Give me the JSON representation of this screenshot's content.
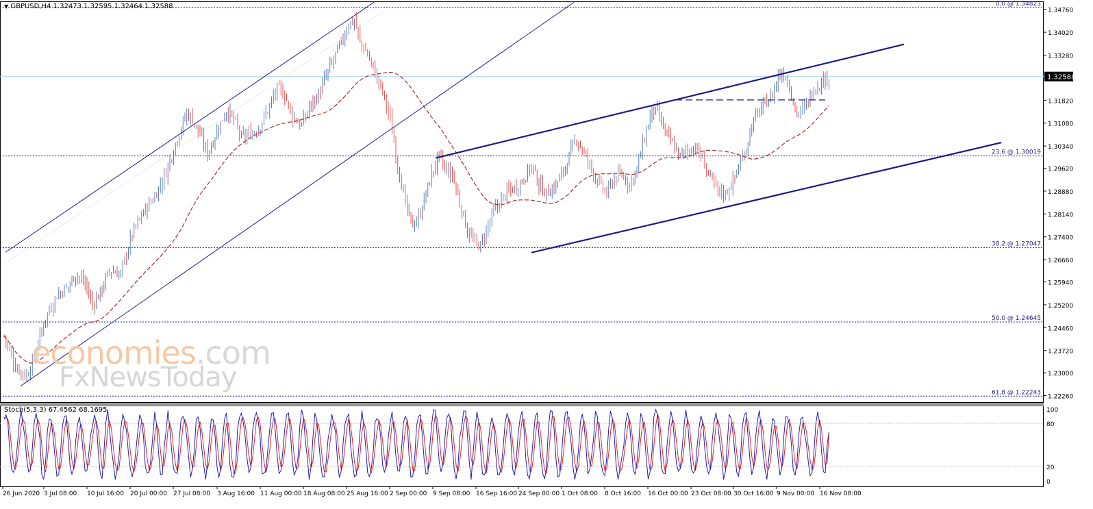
{
  "chart_title": "GBPUSD,H4  1.32473 1.32595 1.32464 1.32588",
  "indicator_title": "Stoch(5,3,3) 67.4562 68.1695",
  "watermark": {
    "part1": "economies",
    "part2": ".com",
    "line2": "FxNewsToday"
  },
  "current_price_label": "1.32588",
  "colors": {
    "bull": "#5b7fb8",
    "bear": "#e65050",
    "ma": "#a52a2a",
    "channel": "#1c1c8c",
    "fib": "#23238c",
    "price_line": "#a6d7ef",
    "stoch_main": "#1f1fb0",
    "stoch_signal": "#e02020"
  },
  "chart_data": {
    "type": "candlestick",
    "symbol": "GBPUSD",
    "timeframe": "H4",
    "ohlc_current": [
      1.32473,
      1.32595,
      1.32464,
      1.32588
    ],
    "ylim": [
      1.2205,
      1.3502
    ],
    "y_ticks": [
      "1.34760",
      "1.34020",
      "1.33280",
      "1.32588",
      "1.31820",
      "1.31080",
      "1.30340",
      "1.29620",
      "1.28880",
      "1.28140",
      "1.27400",
      "1.26660",
      "1.25940",
      "1.25200",
      "1.24460",
      "1.23720",
      "1.23000",
      "1.22260"
    ],
    "x_labels": [
      "26 Jun 2020",
      "3 Jul 08:00",
      "10 Jul 16:00",
      "20 Jul 00:00",
      "27 Jul 08:00",
      "3 Aug 16:00",
      "11 Aug 00:00",
      "18 Aug 08:00",
      "25 Aug 16:00",
      "2 Sep 00:00",
      "9 Sep 08:00",
      "16 Sep 16:00",
      "24 Sep 00:00",
      "1 Oct 08:00",
      "8 Oct 16:00",
      "16 Oct 00:00",
      "23 Oct 08:00",
      "30 Oct 16:00",
      "9 Nov 00:00",
      "16 Nov 08:00"
    ],
    "fib_levels": [
      {
        "label": "0.0 @ 1.34823",
        "value": 1.34823
      },
      {
        "label": "23.6 @ 1.30019",
        "value": 1.30019
      },
      {
        "label": "38.2 @ 1.27047",
        "value": 1.27047
      },
      {
        "label": "50.0 @ 1.24645",
        "value": 1.24645
      },
      {
        "label": "61.8 @ 1.22243",
        "value": 1.22243
      }
    ],
    "current_price": 1.32588,
    "close_path": [
      [
        0,
        1.242
      ],
      [
        6,
        1.232
      ],
      [
        12,
        1.229
      ],
      [
        16,
        1.235
      ],
      [
        22,
        1.248
      ],
      [
        28,
        1.255
      ],
      [
        34,
        1.258
      ],
      [
        38,
        1.262
      ],
      [
        43,
        1.259
      ],
      [
        47,
        1.252
      ],
      [
        51,
        1.256
      ],
      [
        56,
        1.263
      ],
      [
        62,
        1.262
      ],
      [
        68,
        1.275
      ],
      [
        74,
        1.282
      ],
      [
        80,
        1.287
      ],
      [
        86,
        1.295
      ],
      [
        92,
        1.306
      ],
      [
        97,
        1.314
      ],
      [
        100,
        1.312
      ],
      [
        104,
        1.307
      ],
      [
        108,
        1.301
      ],
      [
        113,
        1.308
      ],
      [
        118,
        1.315
      ],
      [
        122,
        1.312
      ],
      [
        126,
        1.306
      ],
      [
        130,
        1.307
      ],
      [
        135,
        1.309
      ],
      [
        140,
        1.315
      ],
      [
        145,
        1.322
      ],
      [
        149,
        1.32
      ],
      [
        153,
        1.313
      ],
      [
        158,
        1.31
      ],
      [
        162,
        1.316
      ],
      [
        167,
        1.32
      ],
      [
        171,
        1.326
      ],
      [
        176,
        1.333
      ],
      [
        180,
        1.338
      ],
      [
        183,
        1.343
      ],
      [
        186,
        1.344
      ],
      [
        189,
        1.337
      ],
      [
        193,
        1.333
      ],
      [
        197,
        1.327
      ],
      [
        201,
        1.321
      ],
      [
        205,
        1.312
      ],
      [
        208,
        1.301
      ],
      [
        211,
        1.291
      ],
      [
        214,
        1.282
      ],
      [
        217,
        1.278
      ],
      [
        220,
        1.28
      ],
      [
        224,
        1.288
      ],
      [
        228,
        1.296
      ],
      [
        231,
        1.3
      ],
      [
        234,
        1.296
      ],
      [
        238,
        1.294
      ],
      [
        242,
        1.285
      ],
      [
        246,
        1.276
      ],
      [
        250,
        1.272
      ],
      [
        253,
        1.271
      ],
      [
        256,
        1.276
      ],
      [
        260,
        1.282
      ],
      [
        264,
        1.286
      ],
      [
        268,
        1.289
      ],
      [
        272,
        1.29
      ],
      [
        276,
        1.293
      ],
      [
        280,
        1.297
      ],
      [
        284,
        1.291
      ],
      [
        288,
        1.288
      ],
      [
        292,
        1.29
      ],
      [
        296,
        1.294
      ],
      [
        300,
        1.3
      ],
      [
        304,
        1.306
      ],
      [
        308,
        1.301
      ],
      [
        312,
        1.296
      ],
      [
        316,
        1.291
      ],
      [
        320,
        1.288
      ],
      [
        324,
        1.293
      ],
      [
        328,
        1.294
      ],
      [
        332,
        1.291
      ],
      [
        336,
        1.296
      ],
      [
        340,
        1.306
      ],
      [
        344,
        1.315
      ],
      [
        347,
        1.314
      ],
      [
        351,
        1.308
      ],
      [
        355,
        1.304
      ],
      [
        359,
        1.3
      ],
      [
        363,
        1.302
      ],
      [
        367,
        1.303
      ],
      [
        371,
        1.299
      ],
      [
        375,
        1.293
      ],
      [
        379,
        1.289
      ],
      [
        383,
        1.288
      ],
      [
        387,
        1.292
      ],
      [
        391,
        1.298
      ],
      [
        394,
        1.303
      ],
      [
        397,
        1.31
      ],
      [
        400,
        1.314
      ],
      [
        404,
        1.317
      ],
      [
        408,
        1.32
      ],
      [
        411,
        1.326
      ],
      [
        414,
        1.327
      ],
      [
        417,
        1.323
      ],
      [
        420,
        1.315
      ],
      [
        423,
        1.314
      ],
      [
        426,
        1.317
      ],
      [
        430,
        1.322
      ],
      [
        434,
        1.324
      ],
      [
        438,
        1.326
      ]
    ],
    "close_step_x": 2.75,
    "ma_period": 50,
    "channels": [
      {
        "name": "upper-channel",
        "points": [
          [
            8,
            1.269
          ],
          [
            548,
            1.3502
          ]
        ]
      },
      {
        "name": "upper-channel-lower",
        "points": [
          [
            30,
            1.2257
          ],
          [
            840,
            1.3502
          ]
        ]
      },
      {
        "name": "wedge-upper",
        "points": [
          [
            636,
            1.2995
          ],
          [
            1320,
            1.3363
          ]
        ]
      },
      {
        "name": "wedge-lower",
        "points": [
          [
            776,
            1.2689
          ],
          [
            1462,
            1.3045
          ]
        ]
      },
      {
        "name": "horizontal",
        "points": [
          [
            986,
            1.3183
          ],
          [
            1205,
            1.3183
          ]
        ]
      }
    ],
    "stochastic": {
      "k": 5,
      "d": 3,
      "slowing": 3,
      "main": 67.4562,
      "signal": 68.1695,
      "levels": [
        20,
        80
      ],
      "ylim": [
        0,
        100
      ],
      "y_ticks": [
        "100",
        "80",
        "20",
        "0"
      ]
    }
  }
}
